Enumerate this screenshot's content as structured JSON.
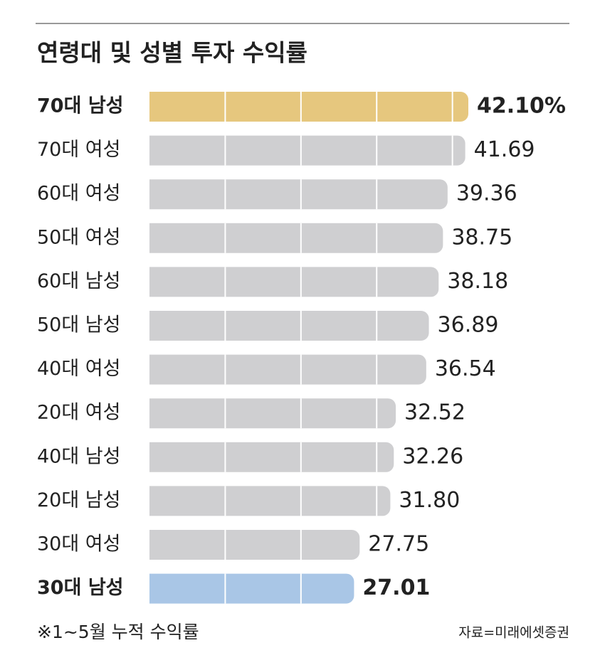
{
  "chart_data": {
    "type": "bar",
    "orientation": "horizontal",
    "title": "연령대 및 성별 투자 수익률",
    "categories": [
      "70대 남성",
      "70대 여성",
      "60대 여성",
      "50대 여성",
      "60대 남성",
      "50대 남성",
      "40대 여성",
      "20대 여성",
      "40대 남성",
      "20대 남성",
      "30대 여성",
      "30대 남성"
    ],
    "values": [
      42.1,
      41.69,
      39.36,
      38.75,
      38.18,
      36.89,
      36.54,
      32.52,
      32.26,
      31.8,
      27.75,
      27.01
    ],
    "value_labels": [
      "42.10%",
      "41.69",
      "39.36",
      "38.75",
      "38.18",
      "36.89",
      "36.54",
      "32.52",
      "32.26",
      "31.80",
      "27.75",
      "27.01"
    ],
    "colors": [
      "#e6c77e",
      "#cfcfd1",
      "#cfcfd1",
      "#cfcfd1",
      "#cfcfd1",
      "#cfcfd1",
      "#cfcfd1",
      "#cfcfd1",
      "#cfcfd1",
      "#cfcfd1",
      "#cfcfd1",
      "#a9c6e6"
    ],
    "xgrid": [
      10,
      20,
      30,
      40
    ],
    "grid_color": "#ffffff",
    "footnote": "※1~5월 누적 수익률",
    "source": "자료=미래에셋증권"
  }
}
